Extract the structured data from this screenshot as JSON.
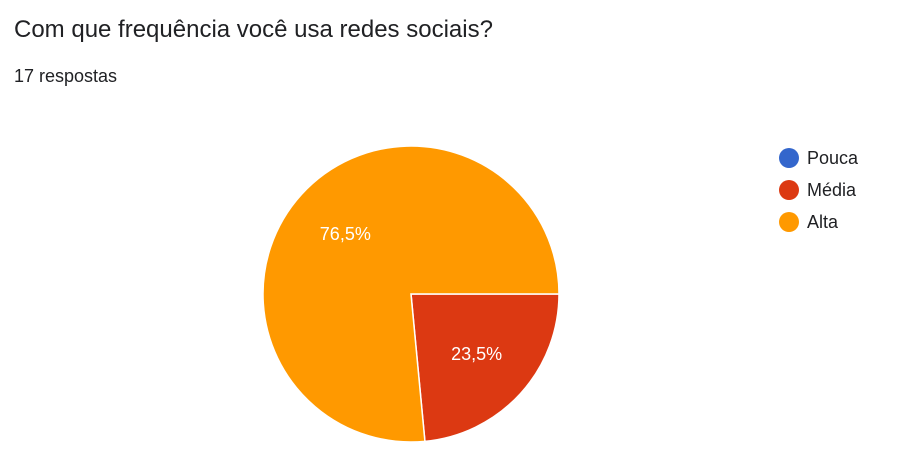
{
  "question": {
    "title": "Com que frequência você usa redes sociais?",
    "response_count": "17 respostas"
  },
  "chart_data": {
    "type": "pie",
    "categories": [
      "Pouca",
      "Média",
      "Alta"
    ],
    "values": [
      0,
      23.5,
      76.5
    ],
    "labels": [
      "",
      "23,5%",
      "76,5%"
    ],
    "colors": [
      "#3366cc",
      "#dc3912",
      "#ff9900"
    ],
    "legend_position": "right"
  }
}
